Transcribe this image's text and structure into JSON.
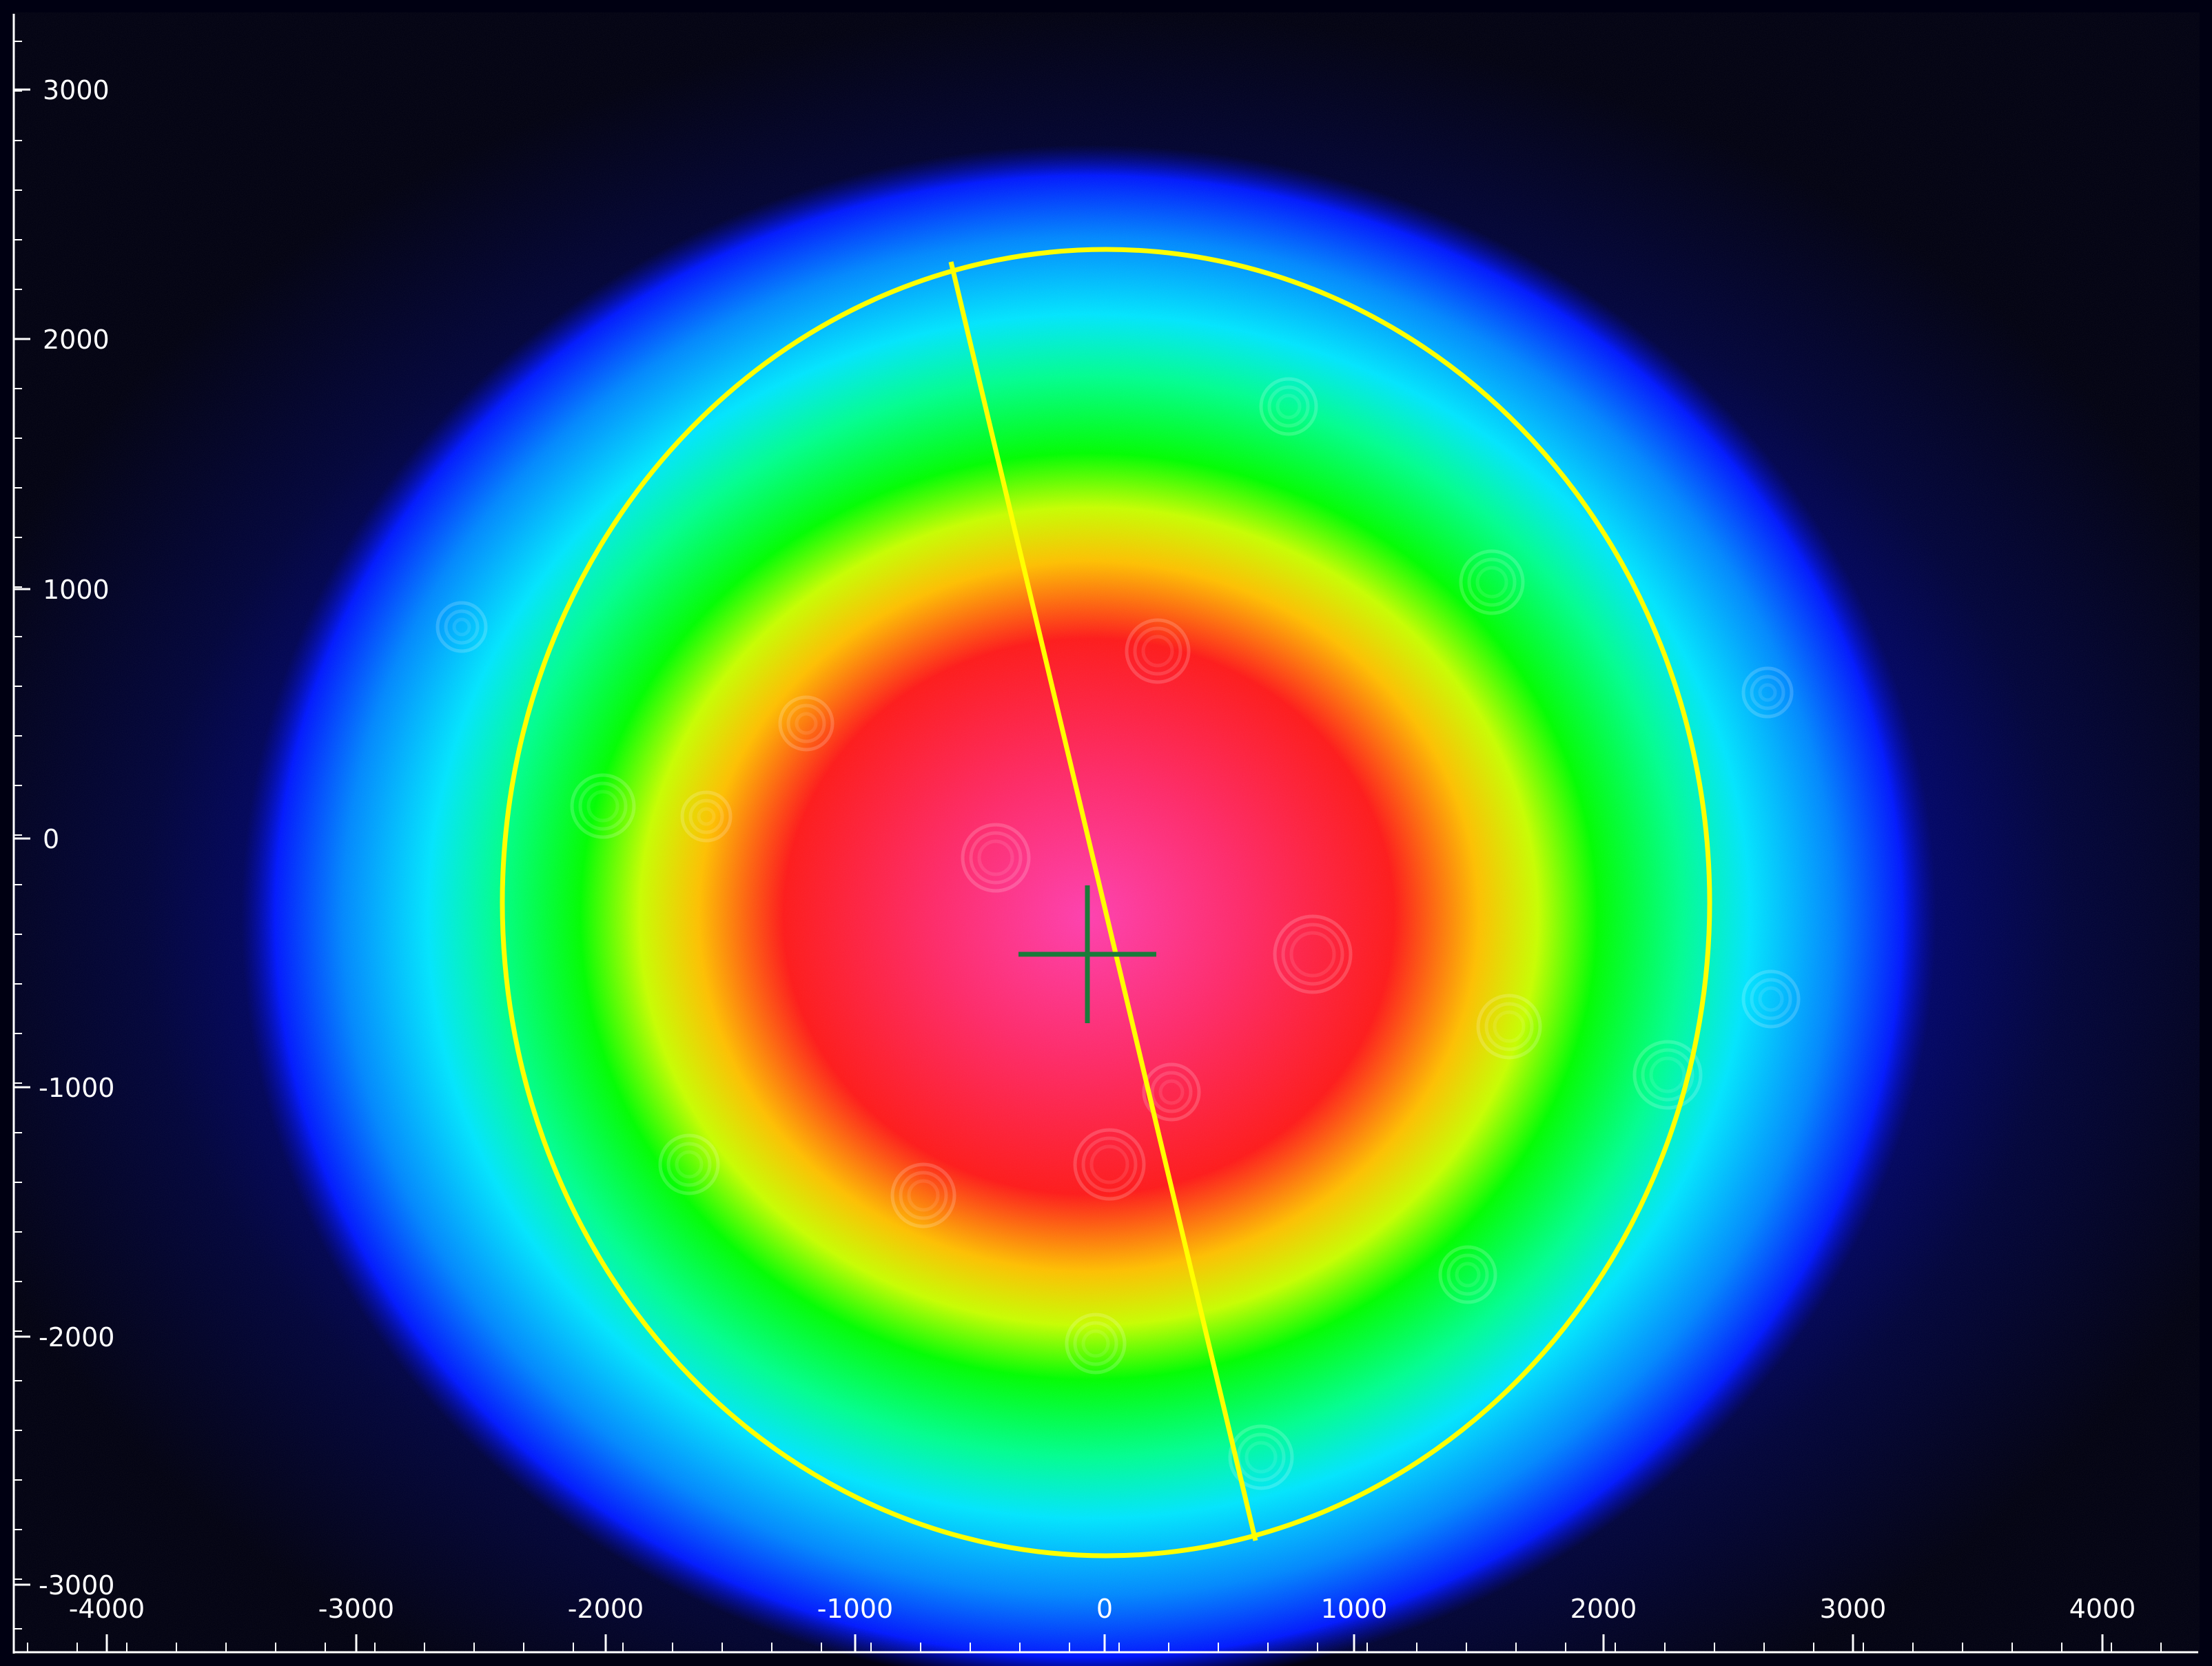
{
  "axes": {
    "x_ticks": [
      "-4000",
      "-3000",
      "-2000",
      "-1000",
      "0",
      "1000",
      "2000",
      "3000",
      "4000"
    ],
    "y_ticks": [
      "3000",
      "2000",
      "1000",
      "0",
      "-1000",
      "-2000",
      "-3000"
    ]
  },
  "colormap": [
    "#000010",
    "#0000ff",
    "#00ffff",
    "#00ff00",
    "#ffff00",
    "#ff2020",
    "#ff20a0"
  ],
  "overlay": {
    "ellipse_color": "#ffff00",
    "crosshair_color": "#1a7a3a"
  }
}
